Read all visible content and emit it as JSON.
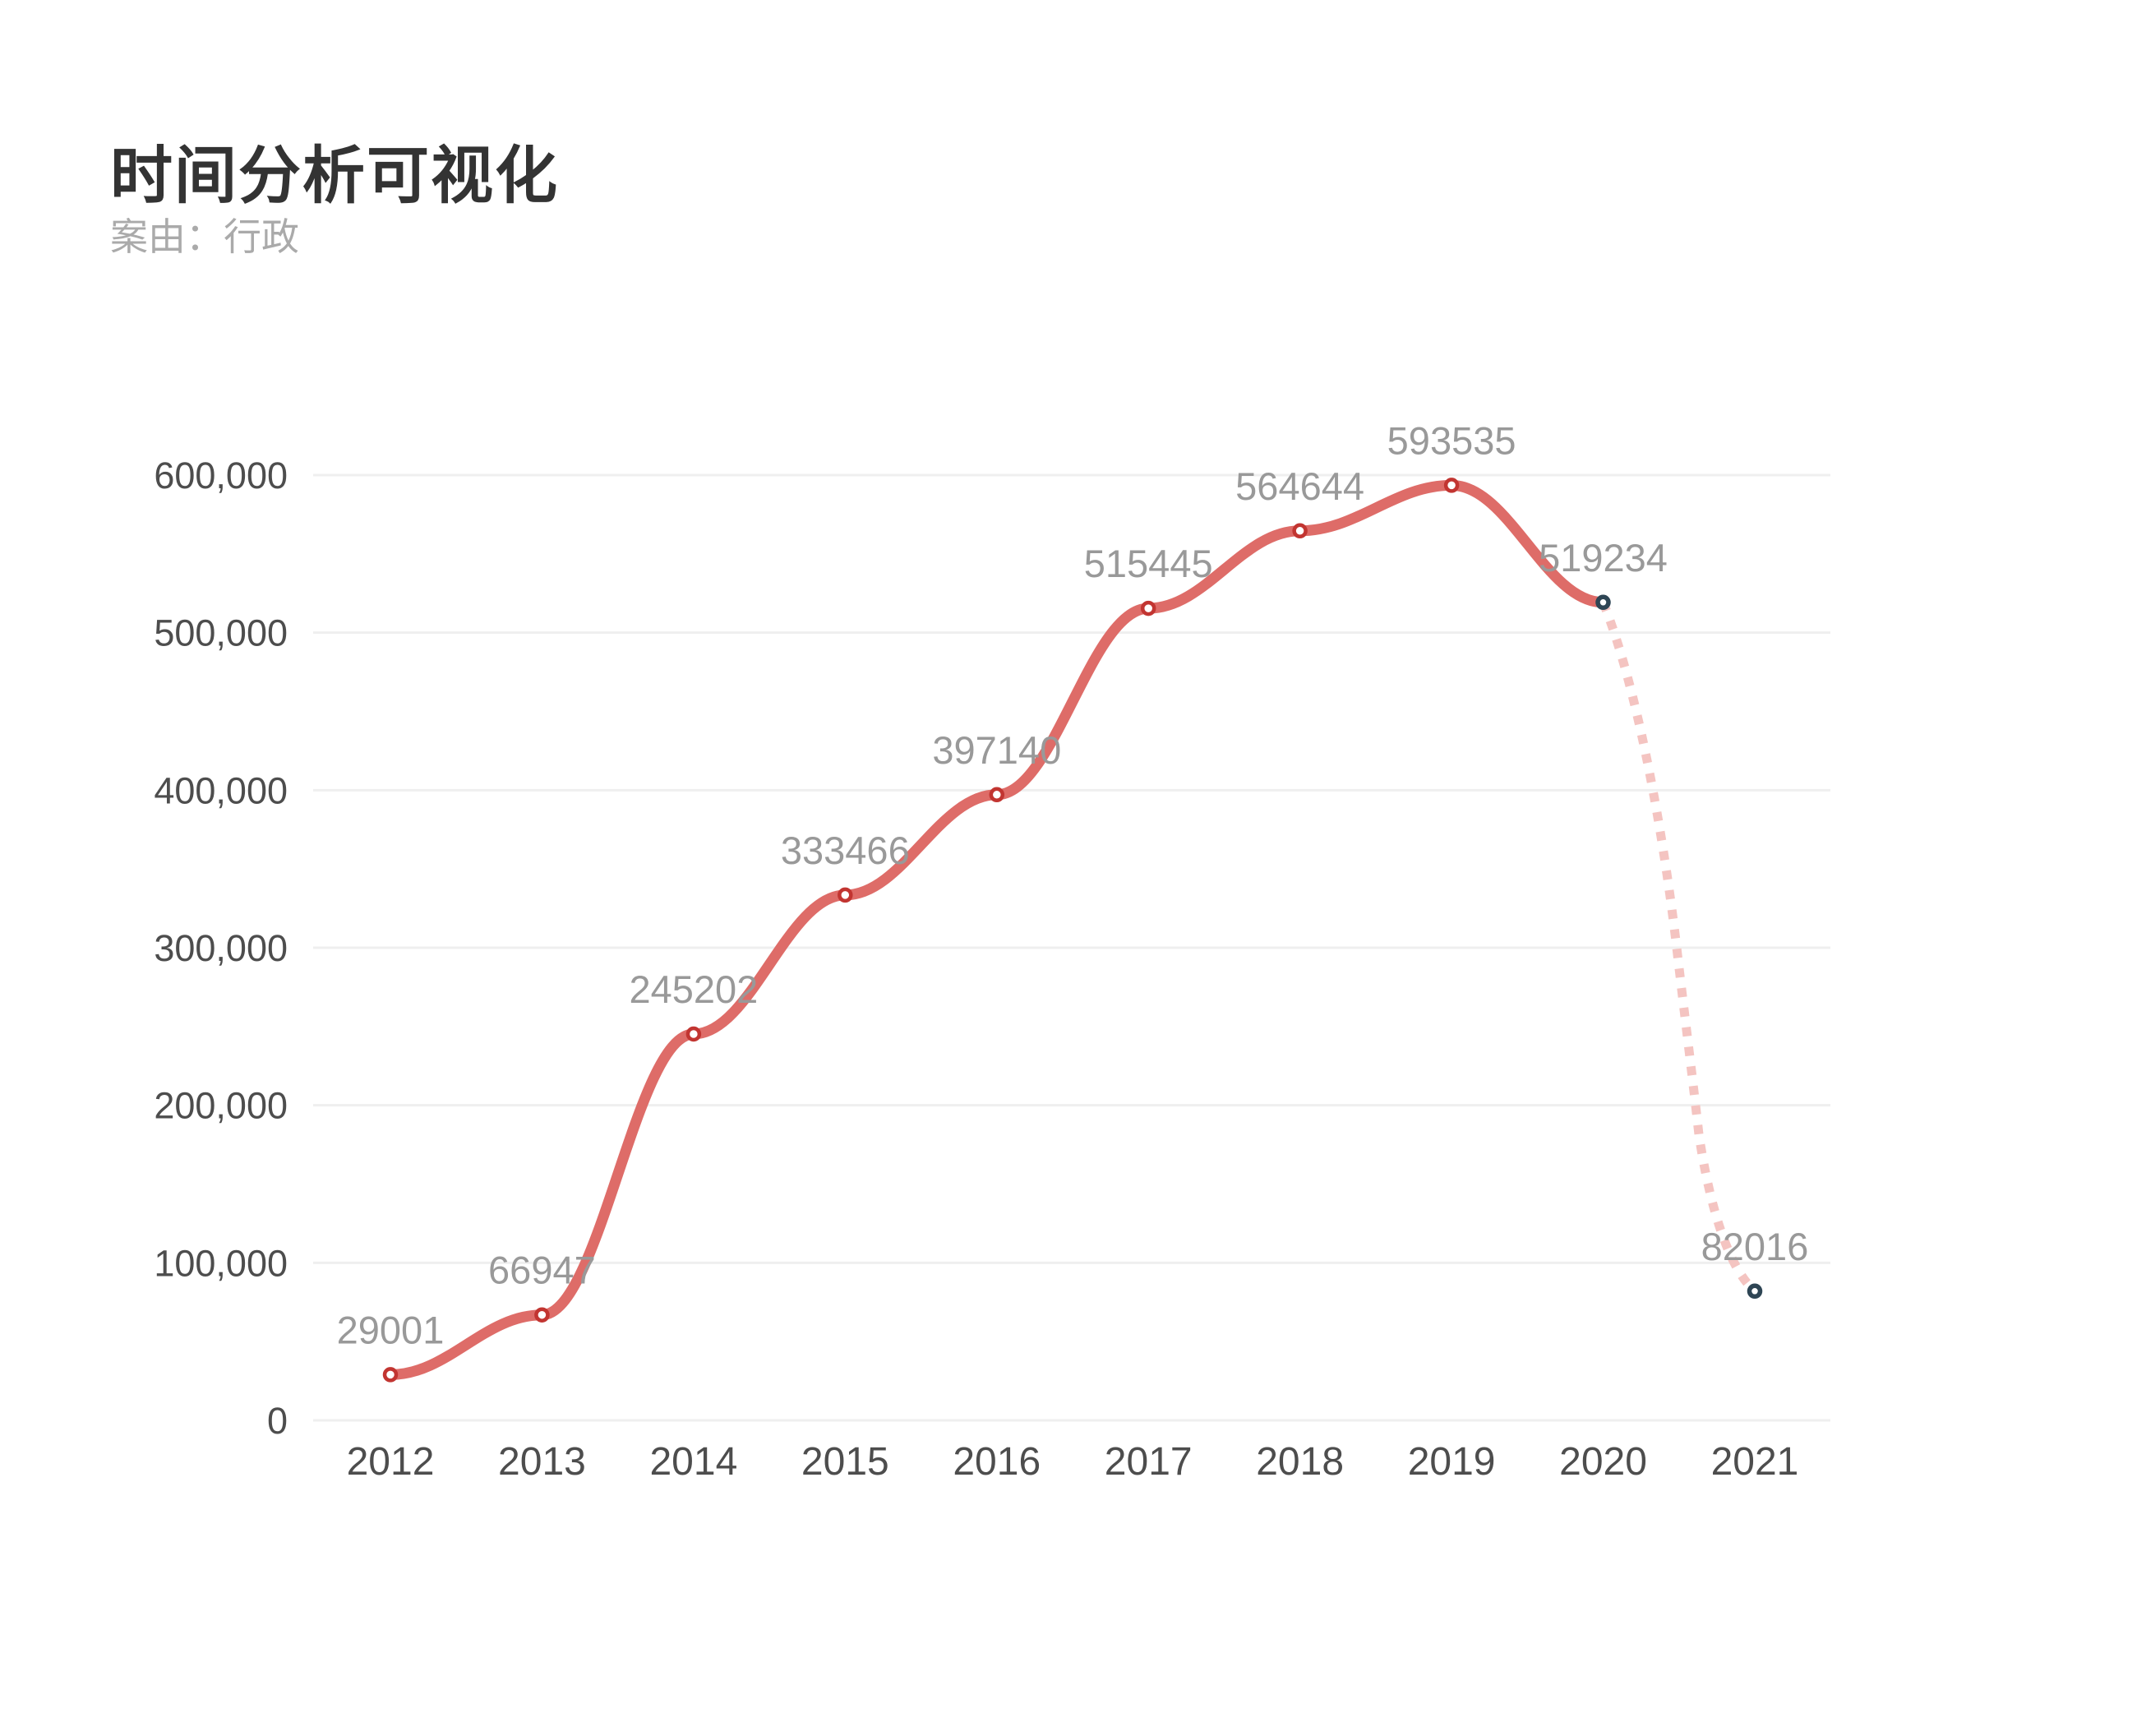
{
  "title": "时间分析可视化",
  "subtitle": "案由：行政",
  "chart_data": {
    "type": "line",
    "title": "时间分析可视化",
    "subtitle": "案由：行政",
    "categories": [
      "2012",
      "2013",
      "2014",
      "2015",
      "2016",
      "2017",
      "2018",
      "2019",
      "2020",
      "2021"
    ],
    "values": [
      29001,
      66947,
      245202,
      333466,
      397140,
      515445,
      564644,
      593535,
      519234,
      82016
    ],
    "data_labels": [
      "29001",
      "66947",
      "245202",
      "333466",
      "397140",
      "515445",
      "564644",
      "593535",
      "519234",
      "82016"
    ],
    "xlabel": "",
    "ylabel": "",
    "ylim": [
      0,
      600000
    ],
    "y_ticks": [
      0,
      100000,
      200000,
      300000,
      400000,
      500000,
      600000
    ],
    "y_tick_labels": [
      "0",
      "100,000",
      "200,000",
      "300,000",
      "400,000",
      "500,000",
      "600,000"
    ],
    "grid": true,
    "smooth": true,
    "legend_position": "none",
    "segments": [
      {
        "name": "historical",
        "from": "2012",
        "to": "2020",
        "line_style": "solid",
        "marker_ring": "#c23531"
      },
      {
        "name": "partial-year",
        "from": "2020",
        "to": "2021",
        "line_style": "dashed",
        "marker_ring": "#2e4554"
      }
    ],
    "colors": {
      "solid_line": "#de6c68",
      "dashed_line": "#f4c4c1",
      "red_marker_stroke": "#c23531",
      "dark_marker_stroke": "#2e4554",
      "marker_fill": "#ffffff",
      "data_label": "#999999",
      "axis_label": "#4d4d4d",
      "gridline": "#efefef",
      "title": "#333333",
      "subtitle": "#aaaaaa",
      "background": "#ffffff"
    }
  }
}
